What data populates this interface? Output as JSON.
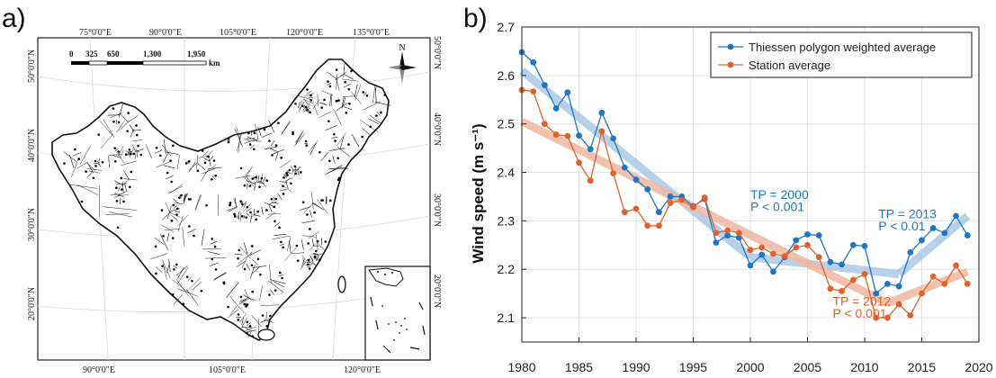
{
  "panel_a": {
    "label": "a)",
    "top_lon_labels": [
      "75°0'0\"E",
      "90°0'0\"E",
      "105°0'0\"E",
      "120°0'0\"E",
      "135°0'0\"E"
    ],
    "bottom_lon_labels": [
      "90°0'0\"E",
      "105°0'0\"E",
      "120°0'0\"E"
    ],
    "left_lat_labels": [
      "50°0'0\"N",
      "40°0'0\"N",
      "30°0'0\"N",
      "20°0'0\"N"
    ],
    "right_lat_labels": [
      "50°0'0\"N",
      "40°0'0\"N",
      "30°0'0\"N",
      "20°0'0\"N"
    ],
    "scale_labels": [
      "0",
      "325",
      "650",
      "1,300",
      "1,950"
    ],
    "scale_unit": "km",
    "north_label": "N",
    "colors": {
      "lines": "#222222",
      "stations": "#000000"
    }
  },
  "panel_b": {
    "label": "b)"
  },
  "chart_data": {
    "type": "line",
    "title": "",
    "xlabel": "",
    "ylabel": "Wind speed (m s⁻¹)",
    "xlim": [
      1980,
      2020
    ],
    "ylim": [
      2.05,
      2.7
    ],
    "x_ticks": [
      1980,
      1985,
      1990,
      1995,
      2000,
      2005,
      2010,
      2015,
      2020
    ],
    "y_ticks": [
      2.1,
      2.2,
      2.3,
      2.4,
      2.5,
      2.6,
      2.7
    ],
    "grid": true,
    "legend_position": "top-right",
    "x": [
      1980,
      1981,
      1982,
      1983,
      1984,
      1985,
      1986,
      1987,
      1988,
      1989,
      1990,
      1991,
      1992,
      1993,
      1994,
      1995,
      1996,
      1997,
      1998,
      1999,
      2000,
      2001,
      2002,
      2003,
      2004,
      2005,
      2006,
      2007,
      2008,
      2009,
      2010,
      2011,
      2012,
      2013,
      2014,
      2015,
      2016,
      2017,
      2018,
      2019
    ],
    "series": [
      {
        "name": "Thiessen polygon weighted average",
        "color": "#1f77c4",
        "values": [
          2.648,
          2.627,
          2.58,
          2.532,
          2.565,
          2.476,
          2.448,
          2.523,
          2.47,
          2.41,
          2.385,
          2.365,
          2.318,
          2.35,
          2.35,
          2.33,
          2.345,
          2.255,
          2.27,
          2.265,
          2.208,
          2.23,
          2.195,
          2.225,
          2.26,
          2.272,
          2.27,
          2.215,
          2.21,
          2.25,
          2.248,
          2.15,
          2.17,
          2.165,
          2.235,
          2.26,
          2.285,
          2.275,
          2.31,
          2.27
        ]
      },
      {
        "name": "Station average",
        "color": "#e0622a",
        "values": [
          2.57,
          2.567,
          2.5,
          2.478,
          2.475,
          2.42,
          2.383,
          2.485,
          2.398,
          2.318,
          2.325,
          2.29,
          2.29,
          2.337,
          2.343,
          2.328,
          2.348,
          2.275,
          2.28,
          2.275,
          2.24,
          2.245,
          2.232,
          2.227,
          2.245,
          2.25,
          2.225,
          2.16,
          2.155,
          2.178,
          2.19,
          2.1,
          2.1,
          2.128,
          2.105,
          2.15,
          2.185,
          2.17,
          2.208,
          2.17
        ]
      }
    ],
    "trends": [
      {
        "series": "Thiessen polygon weighted average",
        "color": "#aac9e6",
        "segments": [
          [
            1980,
            2.61,
            2000,
            2.225
          ],
          [
            2000,
            2.225,
            2013,
            2.19
          ],
          [
            2013,
            2.19,
            2019,
            2.31
          ]
        ]
      },
      {
        "series": "Station average",
        "color": "#f1b8a0",
        "segments": [
          [
            1980,
            2.505,
            2012,
            2.13
          ],
          [
            2012,
            2.13,
            2019,
            2.195
          ]
        ]
      }
    ],
    "annotations": [
      {
        "text": "TP = 2000",
        "x": 2000,
        "y": 2.345,
        "color": "#1f77c4"
      },
      {
        "text": "P < 0.001",
        "x": 2000,
        "y": 2.32,
        "color": "#1f77c4"
      },
      {
        "text": "TP = 2013",
        "x": 2011.2,
        "y": 2.305,
        "color": "#1f77c4"
      },
      {
        "text": "P < 0.01",
        "x": 2011.2,
        "y": 2.28,
        "color": "#1f77c4"
      },
      {
        "text": "TP = 2012",
        "x": 2007.2,
        "y": 2.125,
        "color": "#e0622a"
      },
      {
        "text": "P < 0.001",
        "x": 2007.2,
        "y": 2.1,
        "color": "#e0622a"
      }
    ]
  }
}
